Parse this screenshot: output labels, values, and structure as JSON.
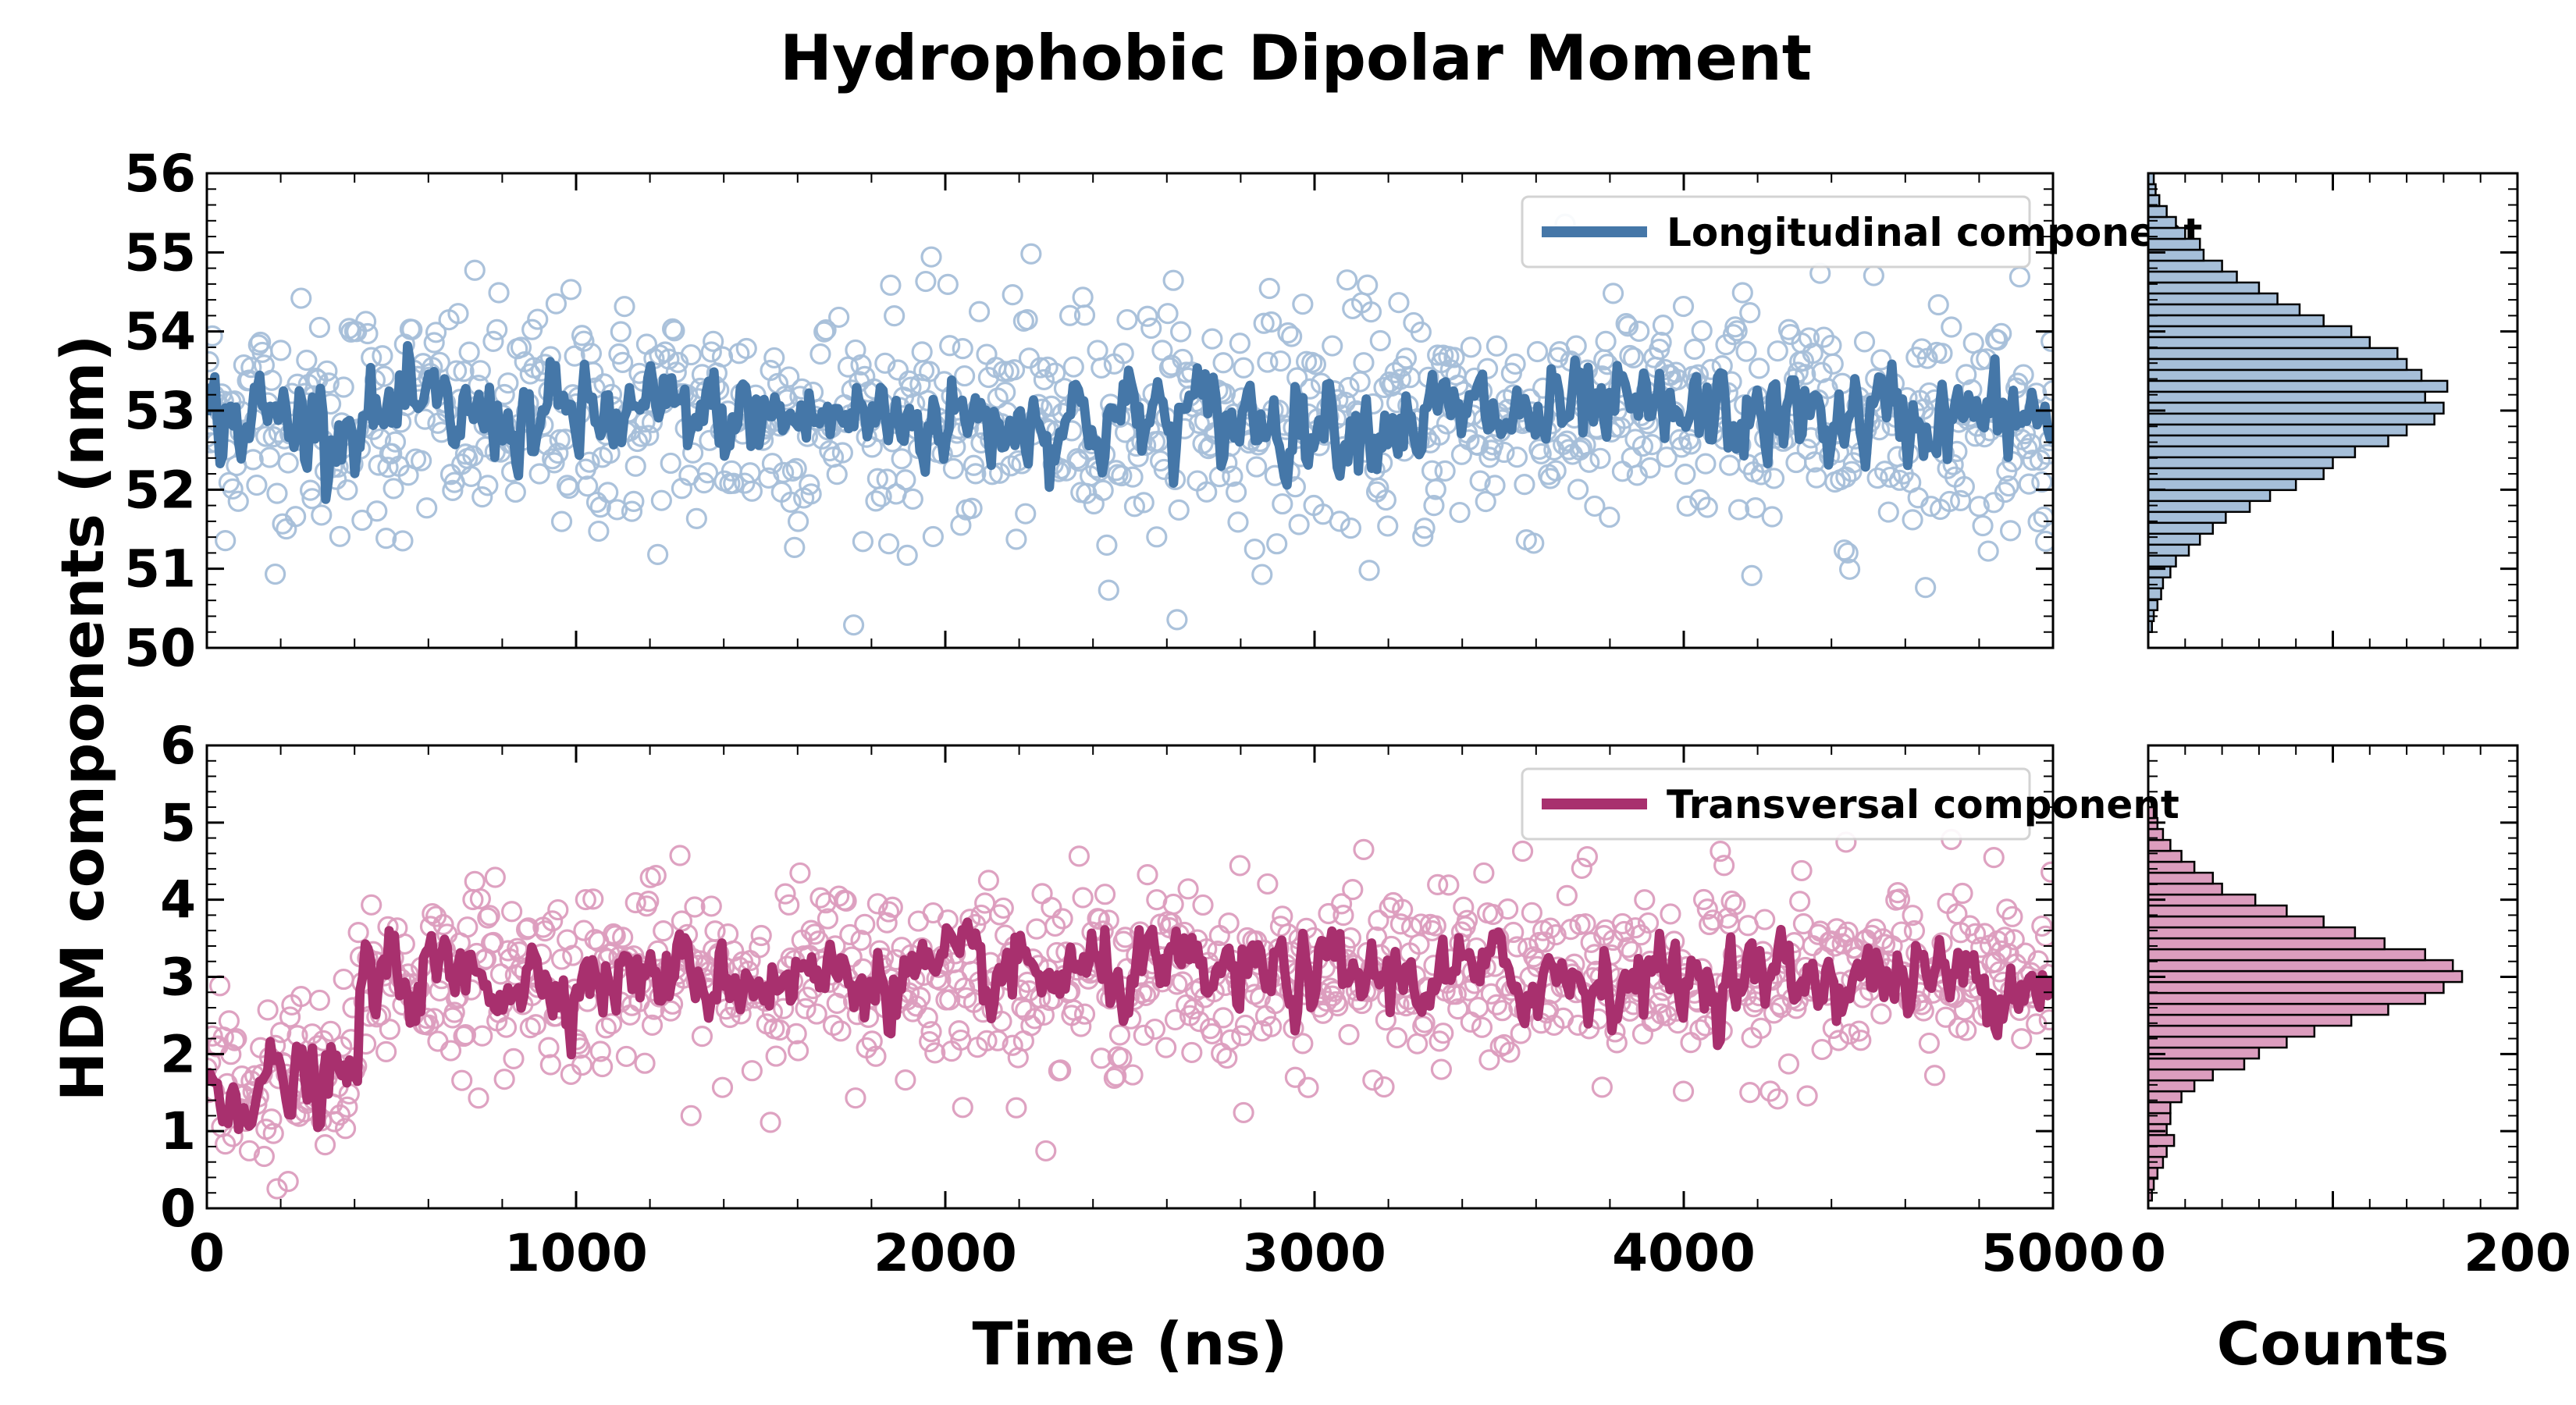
{
  "title": "Hydrophobic Dipolar Moment",
  "colors": {
    "longitudinal": "#4577a8",
    "longitudinal_fill": "#a6bfd9",
    "transversal": "#a8306e",
    "transversal_fill": "#dc9dbe",
    "axis": "#000000"
  },
  "chart_data": [
    {
      "id": "top_scatter",
      "type": "scatter",
      "xlim": [
        0,
        5000
      ],
      "ylim": [
        50,
        56
      ],
      "yticks": [
        50,
        51,
        52,
        53,
        54,
        55,
        56
      ],
      "xticks": [
        0,
        1000,
        2000,
        3000,
        4000,
        5000
      ],
      "xtick_labels_visible": false,
      "series": [
        {
          "name": "Longitudinal component",
          "kind": "running-average-line",
          "mean": 52.9,
          "spread": 0.35
        },
        {
          "kind": "raw-samples-markers",
          "mean": 52.9,
          "spread": 1.0,
          "n_points": 1000
        }
      ],
      "legend": {
        "position": "top-right",
        "entries": [
          "Longitudinal component"
        ]
      }
    },
    {
      "id": "bottom_scatter",
      "type": "scatter",
      "xlim": [
        0,
        5000
      ],
      "ylim": [
        0,
        6
      ],
      "yticks": [
        0,
        1,
        2,
        3,
        4,
        5,
        6
      ],
      "xticks": [
        0,
        1000,
        2000,
        3000,
        4000,
        5000
      ],
      "xlabel": "Time (ns)",
      "series": [
        {
          "name": "Transversal component",
          "kind": "running-average-line",
          "segments": [
            {
              "x": [
                0,
                410
              ],
              "mean": 1.6
            },
            {
              "x": [
                410,
                5000
              ],
              "mean": 3.0
            }
          ],
          "spread": 0.3
        },
        {
          "kind": "raw-samples-markers",
          "segments": [
            {
              "x": [
                0,
                410
              ],
              "mean": 1.6
            },
            {
              "x": [
                410,
                5000
              ],
              "mean": 3.0
            }
          ],
          "spread": 0.8,
          "n_points": 1000
        }
      ],
      "legend": {
        "position": "top-right",
        "entries": [
          "Transversal component"
        ]
      }
    },
    {
      "id": "top_hist",
      "type": "bar",
      "orientation": "horizontal",
      "xlim": [
        0,
        200
      ],
      "ylim": [
        50,
        56
      ],
      "bin_edges": [
        50.2,
        56.0
      ],
      "values": [
        2,
        3,
        5,
        7,
        8,
        12,
        15,
        22,
        28,
        35,
        42,
        55,
        66,
        80,
        95,
        100,
        112,
        130,
        140,
        155,
        160,
        150,
        162,
        148,
        140,
        135,
        120,
        110,
        95,
        82,
        70,
        60,
        48,
        40,
        30,
        28,
        20,
        15,
        10,
        6,
        4,
        3
      ],
      "xticks": [
        0,
        200
      ],
      "tick_labels_visible": false
    },
    {
      "id": "bottom_hist",
      "type": "bar",
      "orientation": "horizontal",
      "xlim": [
        0,
        200
      ],
      "ylim": [
        0,
        6
      ],
      "bin_edges": [
        0.1,
        5.2
      ],
      "values": [
        2,
        3,
        5,
        8,
        10,
        14,
        10,
        12,
        12,
        18,
        25,
        35,
        52,
        60,
        75,
        90,
        110,
        130,
        150,
        160,
        170,
        165,
        150,
        128,
        112,
        95,
        75,
        58,
        40,
        35,
        25,
        18,
        12,
        8,
        5,
        3
      ],
      "xticks": [
        0,
        200
      ],
      "xtick_labels": [
        "0",
        "200"
      ],
      "xlabel": "Counts"
    }
  ],
  "shared_ylabel": "HDM components (nm)"
}
